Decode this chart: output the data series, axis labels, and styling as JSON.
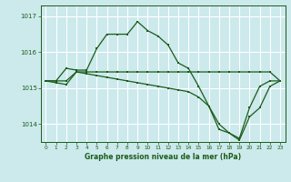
{
  "title": "Graphe pression niveau de la mer (hPa)",
  "background_color": "#cce9ec",
  "grid_color": "#ffffff",
  "line_color": "#1a5c1a",
  "xlim": [
    -0.5,
    23.5
  ],
  "ylim": [
    1013.5,
    1017.3
  ],
  "yticks": [
    1014,
    1015,
    1016,
    1017
  ],
  "xticks": [
    0,
    1,
    2,
    3,
    4,
    5,
    6,
    7,
    8,
    9,
    10,
    11,
    12,
    13,
    14,
    15,
    16,
    17,
    18,
    19,
    20,
    21,
    22,
    23
  ],
  "series": [
    {
      "x": [
        0,
        1,
        2,
        3,
        4,
        5,
        6,
        7,
        8,
        9,
        10,
        11,
        12,
        13,
        14,
        15,
        16,
        17,
        18,
        19,
        20,
        21,
        22,
        23
      ],
      "y": [
        1015.2,
        1015.2,
        1015.55,
        1015.5,
        1015.5,
        1016.1,
        1016.5,
        1016.5,
        1016.5,
        1016.85,
        1016.6,
        1016.45,
        1016.2,
        1015.7,
        1015.55,
        1015.05,
        1014.5,
        1013.85,
        1013.75,
        1013.6,
        1014.45,
        1015.05,
        1015.2,
        1015.2
      ]
    },
    {
      "x": [
        0,
        1,
        2,
        3,
        4,
        5,
        6,
        7,
        8,
        9,
        10,
        11,
        12,
        13,
        14,
        15,
        16,
        17,
        18,
        19,
        20,
        21,
        22,
        23
      ],
      "y": [
        1015.2,
        1015.2,
        1015.2,
        1015.45,
        1015.45,
        1015.45,
        1015.45,
        1015.45,
        1015.45,
        1015.45,
        1015.45,
        1015.45,
        1015.45,
        1015.45,
        1015.45,
        1015.45,
        1015.45,
        1015.45,
        1015.45,
        1015.45,
        1015.45,
        1015.45,
        1015.45,
        1015.2
      ]
    },
    {
      "x": [
        0,
        1,
        2,
        3,
        4,
        5,
        6,
        7,
        8,
        9,
        10,
        11,
        12,
        13,
        14,
        15,
        16,
        17,
        18,
        19,
        20,
        21,
        22,
        23
      ],
      "y": [
        1015.2,
        1015.15,
        1015.1,
        1015.45,
        1015.4,
        1015.35,
        1015.3,
        1015.25,
        1015.2,
        1015.15,
        1015.1,
        1015.05,
        1015.0,
        1014.95,
        1014.9,
        1014.75,
        1014.5,
        1014.0,
        1013.75,
        1013.55,
        1014.2,
        1014.45,
        1015.05,
        1015.2
      ]
    }
  ]
}
